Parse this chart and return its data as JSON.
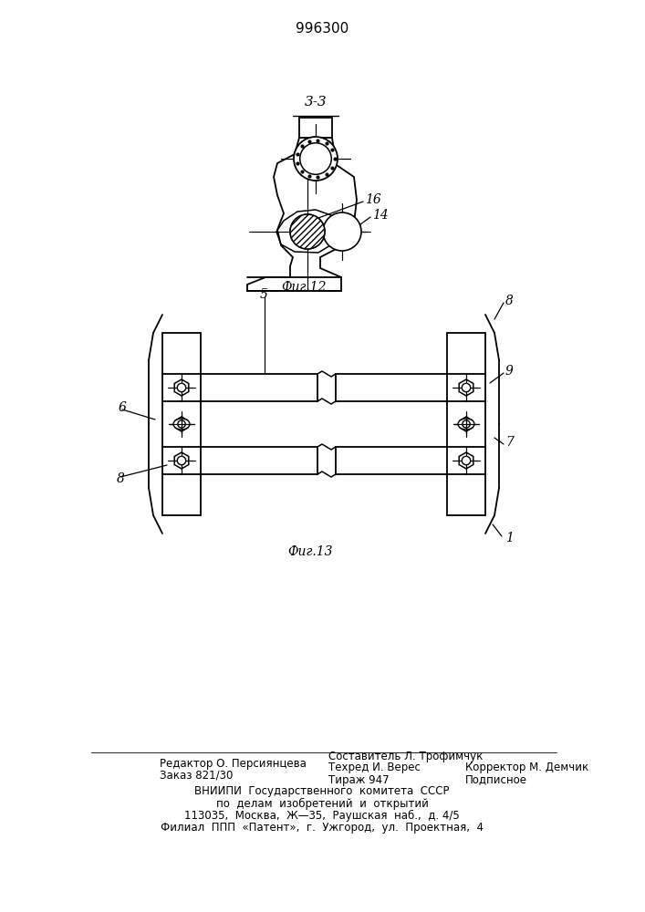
{
  "title": "996300",
  "fig12_label": "Фиг.12",
  "fig13_label": "Фиг.13",
  "section_label": "3-3",
  "bg_color": "#ffffff",
  "line_color": "#000000",
  "footer_col1_line1": "Редактор О. Персиянцева",
  "footer_col1_line2": "Заказ 821/30",
  "footer_col2_line1": "Составитель Л. Трофимчук",
  "footer_col2_line2": "Техред И. Верес",
  "footer_col2_line3": "Тираж 947",
  "footer_col3_line1": "Корректор М. Демчик",
  "footer_col3_line2": "Подписное",
  "footer_line3": "ВНИИПИ  Государственного  комитета  СССР",
  "footer_line4": "по  делам  изобретений  и  открытий",
  "footer_line5": "113035,  Москва,  Ж—35,  Раушская  наб.,  д. 4/5",
  "footer_line6": "Филиал  ППП  «Патент»,  г.  Ужгород,  ул.  Проектная,  4"
}
